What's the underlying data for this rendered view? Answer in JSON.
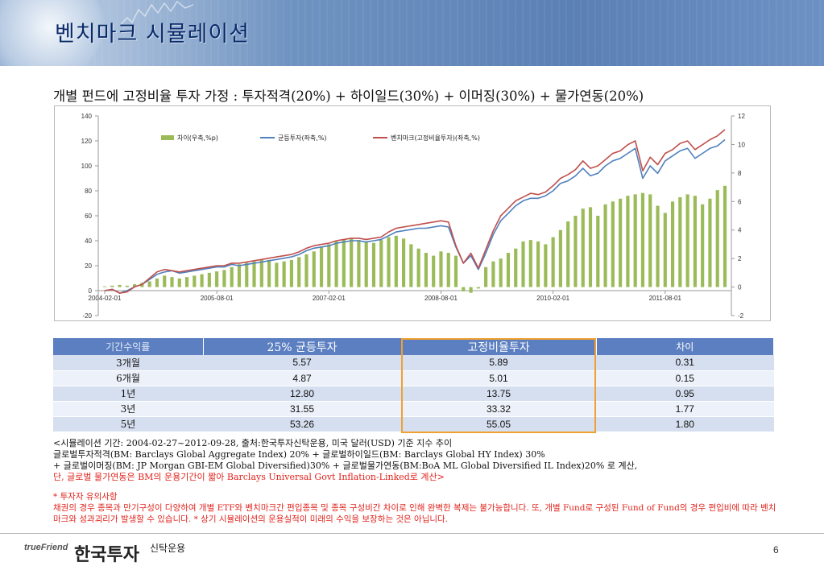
{
  "header": {
    "title": "벤치마크 시뮬레이션"
  },
  "subtitle": "개별 펀드에 고정비율 투자 가정 : 투자적격(20%) +  하이일드(30%) + 이머징(30%) + 물가연동(20%)",
  "chart_data": {
    "type": "bar+line",
    "legend": [
      "차이(우축,%p)",
      "균등투자(좌축,%)",
      "벤치마크(고정비율투자)(좌축,%)"
    ],
    "legend_position": "top",
    "x_ticks": [
      "2004-02-01",
      "2005-08-01",
      "2007-02-01",
      "2008-08-01",
      "2010-02-01",
      "2011-08-01"
    ],
    "left_axis": {
      "ticks": [
        -20,
        0,
        20,
        40,
        60,
        80,
        100,
        120,
        140
      ],
      "ylim": [
        -20,
        140
      ]
    },
    "right_axis": {
      "ticks": [
        -2,
        0,
        2,
        4,
        6,
        8,
        10,
        12
      ],
      "ylim": [
        -2,
        12
      ]
    },
    "colors": {
      "bar": "#9bbb59",
      "equal": "#4f81bd",
      "benchmark": "#c0504d"
    },
    "series": [
      {
        "name": "균등투자(좌축,%)",
        "axis": "left",
        "values": [
          0,
          1,
          -2,
          0,
          3,
          5,
          9,
          13,
          15,
          16,
          14,
          15,
          16,
          17,
          18,
          19,
          19,
          21,
          20,
          21,
          22,
          23,
          24,
          25,
          26,
          27,
          29,
          32,
          34,
          35,
          36,
          38,
          39,
          40,
          40,
          39,
          40,
          41,
          44,
          47,
          48,
          49,
          50,
          50,
          51,
          52,
          51,
          35,
          22,
          28,
          17,
          30,
          45,
          56,
          62,
          68,
          72,
          74,
          74,
          76,
          80,
          86,
          88,
          92,
          98,
          92,
          94,
          100,
          104,
          106,
          110,
          114,
          90,
          100,
          94,
          104,
          108,
          112,
          114,
          106,
          110,
          114,
          116,
          121
        ]
      },
      {
        "name": "벤치마크(고정비율투자)(좌축,%)",
        "axis": "left",
        "values": [
          0,
          1,
          -2,
          -1,
          3,
          5,
          10,
          15,
          17,
          16,
          15,
          16,
          17,
          18,
          19,
          20,
          20,
          22,
          22,
          23,
          24,
          25,
          26,
          27,
          28,
          29,
          31,
          34,
          36,
          37,
          38,
          40,
          41,
          42,
          42,
          41,
          42,
          43,
          47,
          50,
          51,
          52,
          53,
          54,
          55,
          56,
          55,
          36,
          22,
          30,
          18,
          33,
          48,
          60,
          66,
          72,
          75,
          78,
          77,
          79,
          84,
          90,
          93,
          97,
          104,
          98,
          100,
          105,
          110,
          112,
          117,
          120,
          96,
          107,
          101,
          110,
          113,
          118,
          120,
          113,
          117,
          121,
          124,
          129
        ]
      },
      {
        "name": "차이(우축,%p)",
        "axis": "right",
        "values": [
          0.05,
          0.1,
          0.15,
          0.1,
          0.2,
          0.3,
          0.4,
          0.6,
          0.8,
          0.7,
          0.6,
          0.7,
          0.8,
          0.9,
          1.0,
          1.1,
          1.2,
          1.4,
          1.6,
          1.7,
          1.8,
          1.9,
          1.9,
          1.7,
          1.8,
          1.9,
          2.1,
          2.3,
          2.5,
          2.8,
          3.0,
          3.2,
          3.3,
          3.4,
          3.3,
          3.2,
          3.1,
          3.3,
          3.5,
          3.6,
          3.4,
          3.0,
          2.7,
          2.4,
          2.2,
          2.5,
          2.4,
          2.2,
          -0.3,
          -0.4,
          -0.1,
          1.4,
          1.8,
          2.0,
          2.4,
          2.7,
          3.2,
          3.3,
          3.2,
          3.0,
          3.5,
          4.0,
          4.6,
          5.0,
          5.5,
          5.6,
          5.0,
          5.8,
          6.0,
          6.2,
          6.4,
          6.5,
          6.6,
          6.5,
          5.7,
          5.2,
          6.0,
          6.3,
          6.5,
          6.4,
          5.8,
          6.2,
          6.8,
          7.1
        ]
      }
    ]
  },
  "table": {
    "headers": [
      "기간수익률",
      "25% 균등투자",
      "고정비율투자",
      "차이"
    ],
    "rows": [
      [
        "3개월",
        "5.57",
        "5.89",
        "0.31"
      ],
      [
        "6개월",
        "4.87",
        "5.01",
        "0.15"
      ],
      [
        "1년",
        "12.80",
        "13.75",
        "0.95"
      ],
      [
        "3년",
        "31.55",
        "33.32",
        "1.77"
      ],
      [
        "5년",
        "53.26",
        "55.05",
        "1.80"
      ]
    ]
  },
  "notes": {
    "line1": "<시뮬레이션 기간: 2004-02-27~2012-09-28, 출처:한국투자신탁운용, 미국 달러(USD) 기준 지수 추이",
    "line2": " 글로벌투자적격(BM: Barclays Global Aggregate Index) 20% +  글로벌하이일드(BM: Barclays Global HY Index) 30%",
    "line3": " + 글로벌이머징(BM: JP Morgan GBI-EM Global Diversified)30% +  글로벌물가연동(BM:BoA ML Global Diversified IL Index)20% 로 계산,",
    "line4": " 단, 글로벌 물가연동은 BM의 운용기간이 짧아 Barclays Universal Govt Inflation-Linked로 계산>"
  },
  "warning": {
    "title": "* 투자자 유의사항",
    "body": "채권의 경우 종목과 만기구성이 다양하여 개별 ETF와 벤치마크간 편입종목 및 종목 구성비간 차이로 인해 완벽한 복제는 불가능합니다. 또, 개별 Fund로 구성된 Fund of Fund의 경우 편입비에 따라 벤치마크와 성과괴리가 발생할 수 있습니다. * 상기 시뮬레이션의 운용실적이 미래의 수익을 보장하는 것은 아닙니다."
  },
  "footer": {
    "brand_en": "trueFriend",
    "brand_ko": "한국투자",
    "brand_sub": "신탁운용",
    "page": "6"
  }
}
